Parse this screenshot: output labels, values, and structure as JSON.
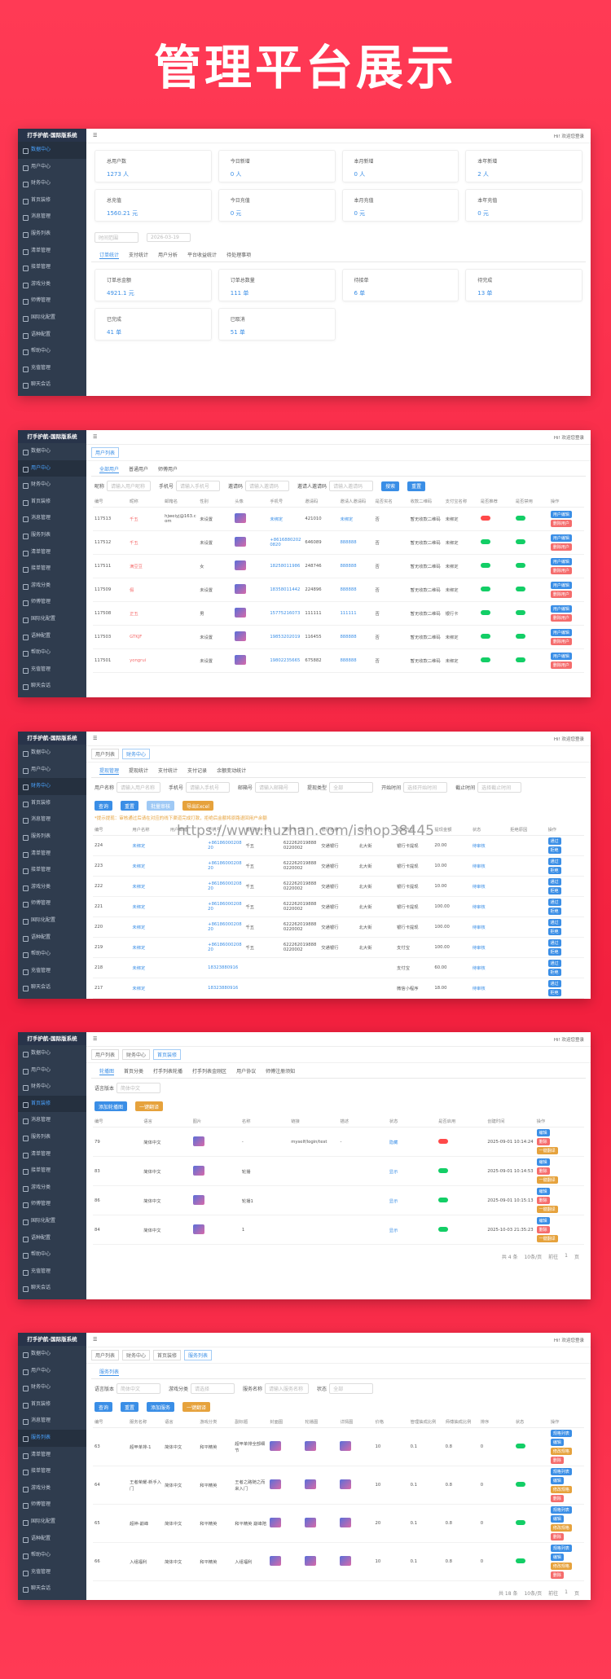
{
  "header": {
    "title": "管理平台展示"
  },
  "watermark": "https://www.huzhan.com/ishop38445",
  "sidebar": {
    "title": "打手护航-国际版系统",
    "menu": [
      "数据中心",
      "用户中心",
      "财务中心",
      "首页装修",
      "消息管理",
      "服务列表",
      "清单管理",
      "接单管理",
      "游戏分类",
      "师傅管理",
      "国际化配置",
      "语种配置",
      "帮助中心",
      "充值管理",
      "聊天会话"
    ]
  },
  "topbar": {
    "user": "Hi! 欢迎您登录"
  },
  "breadcrumbs": [
    "用户列表",
    "财务中心",
    "首页装修",
    "服务列表"
  ],
  "dashboard": {
    "cards": [
      {
        "label": "总用户数",
        "value": "1273 人"
      },
      {
        "label": "今日新增",
        "value": "0 人"
      },
      {
        "label": "本月新增",
        "value": "0 人"
      },
      {
        "label": "本年新增",
        "value": "2 人"
      },
      {
        "label": "总充值",
        "value": "1560.21 元"
      },
      {
        "label": "今日充值",
        "value": "0 元"
      },
      {
        "label": "本月充值",
        "value": "0 元"
      },
      {
        "label": "本年充值",
        "value": "0 元"
      }
    ],
    "range": "时间范围",
    "date": "2026-03-19",
    "tabs": [
      "订单统计",
      "支付统计",
      "用户分析",
      "平台收益统计",
      "待处理事项"
    ],
    "orders": [
      {
        "label": "订单总金额",
        "value": "4921.1 元"
      },
      {
        "label": "订单总数量",
        "value": "111 单"
      },
      {
        "label": "待接单",
        "value": "6 单"
      },
      {
        "label": "待完成",
        "value": "13 单"
      },
      {
        "label": "已完成",
        "value": "41 单"
      },
      {
        "label": "已取消",
        "value": "51 单"
      }
    ]
  },
  "users": {
    "tabs": [
      "全部用户",
      "普通用户",
      "师傅用户"
    ],
    "filters": [
      {
        "label": "昵称",
        "placeholder": "请输入用户昵称"
      },
      {
        "label": "手机号",
        "placeholder": "请输入手机号"
      },
      {
        "label": "邀请码",
        "placeholder": "请输入邀请码"
      },
      {
        "label": "邀请人邀请码",
        "placeholder": "请输入邀请码"
      }
    ],
    "buttons": [
      "搜索",
      "重置"
    ],
    "columns": [
      "编号",
      "昵称",
      "邮箱名",
      "性别",
      "头像",
      "手机号",
      "邀请码",
      "邀请人邀请码",
      "是否实名",
      "收款二维码",
      "支付宝名称",
      "是否推荐",
      "是否禁用",
      "操作"
    ],
    "rows": [
      [
        "117513",
        "千五",
        "hjweiyj@163.com",
        "未设置",
        null,
        "未绑定",
        "421010",
        "未绑定",
        "否",
        "暂无收款二维码",
        "未绑定",
        null,
        null,
        null
      ],
      [
        "117512",
        "千五",
        null,
        "未设置",
        null,
        "+86168802020820",
        "646089",
        "888888",
        "否",
        "暂无收款二维码",
        "未绑定",
        null,
        null,
        null
      ],
      [
        "117511",
        "满豆豆",
        null,
        "女",
        null,
        "18258011986",
        "248746",
        "888888",
        "否",
        "暂无收款二维码",
        "未绑定",
        null,
        null,
        null
      ],
      [
        "117509",
        "假",
        null,
        "未设置",
        null,
        "18358011442",
        "224896",
        "888888",
        "否",
        "暂无收款二维码",
        "未绑定",
        null,
        null,
        null
      ],
      [
        "117508",
        "正五",
        null,
        "男",
        null,
        "15775216073",
        "111111",
        "111111",
        "否",
        "暂无收款二维码",
        "银行卡",
        null,
        null,
        null
      ],
      [
        "117503",
        "GTKJF",
        null,
        "未设置",
        null,
        "19853202019",
        "116455",
        "888888",
        "否",
        "暂无收款二维码",
        "未绑定",
        null,
        null,
        null
      ],
      [
        "117501",
        "yongrui",
        null,
        "未设置",
        null,
        "19802235665",
        "675882",
        "888888",
        "否",
        "暂无收款二维码",
        "未绑定",
        null,
        null,
        null
      ]
    ],
    "actions": [
      "用户编辑",
      "删除用户"
    ]
  },
  "finance": {
    "tabs": [
      "提现管理",
      "提现统计",
      "支付统计",
      "支付记录",
      "余额变动统计"
    ],
    "filters": [
      {
        "label": "用户名称",
        "placeholder": "请输入用户名称"
      },
      {
        "label": "手机号",
        "placeholder": "请输入手机号"
      },
      {
        "label": "邮箱号",
        "placeholder": "请输入邮箱号"
      },
      {
        "label": "提现类型",
        "placeholder": "全部"
      },
      {
        "label": "开始时间",
        "placeholder": "选择开始时间"
      },
      {
        "label": "截止时间",
        "placeholder": "选择截止时间"
      }
    ],
    "buttons": [
      "查询",
      "重置",
      "批量审核",
      "导出Excel"
    ],
    "notice": "*提示提现：审核通过后请在对应的线下渠道完成打款，拒绝后金额将原路退回用户余额",
    "columns": [
      "编号",
      "用户名称",
      "用户邮箱",
      "手机号",
      "银行卡持卡名",
      "银行卡卡号",
      "银行名称",
      "开户行",
      "提现方式",
      "提现金额",
      "状态",
      "拒绝原因",
      "操作"
    ],
    "rows": [
      [
        "224",
        "未绑定",
        null,
        "+8618600020820",
        "千五",
        "6222620198880220002",
        "交通银行",
        "北大街",
        "银行卡提现",
        "20.00",
        "待审核",
        null,
        null
      ],
      [
        "223",
        "未绑定",
        null,
        "+8618600020820",
        "千五",
        "6222620198880220002",
        "交通银行",
        "北大街",
        "银行卡提现",
        "10.00",
        "待审核",
        null,
        null
      ],
      [
        "222",
        "未绑定",
        null,
        "+8618600020820",
        "千五",
        "6222620198880220002",
        "交通银行",
        "北大街",
        "银行卡提现",
        "10.00",
        "待审核",
        null,
        null
      ],
      [
        "221",
        "未绑定",
        null,
        "+8618600020820",
        "千五",
        "6222620198880220002",
        "交通银行",
        "北大街",
        "银行卡提现",
        "100.00",
        "待审核",
        null,
        null
      ],
      [
        "220",
        "未绑定",
        null,
        "+8618600020820",
        "千五",
        "6222620198880220002",
        "交通银行",
        "北大街",
        "银行卡提现",
        "100.00",
        "待审核",
        null,
        null
      ],
      [
        "219",
        "未绑定",
        null,
        "+8618600020820",
        "千五",
        "6222620198880220002",
        "交通银行",
        "北大街",
        "支付宝",
        "100.00",
        "待审核",
        null,
        null
      ],
      [
        "218",
        "未绑定",
        null,
        "18323880916",
        null,
        null,
        null,
        null,
        "支付宝",
        "60.00",
        "待审核",
        null,
        null
      ],
      [
        "217",
        "未绑定",
        null,
        "18323880916",
        null,
        null,
        null,
        null,
        "微信小程序",
        "18.00",
        "待审核",
        null,
        null
      ]
    ],
    "actions": [
      "通过",
      "拒绝"
    ]
  },
  "banners": {
    "tabs": [
      "轮播图",
      "首页分类",
      "打手列表轮播",
      "打手列表金刚区",
      "用户协议",
      "师傅注册须知"
    ],
    "filters": [
      {
        "label": "语言版本",
        "placeholder": "简体中文"
      }
    ],
    "buttons": [
      "添加轮播图",
      "一键翻译"
    ],
    "columns": [
      "编号",
      "语言",
      "图片",
      "名称",
      "链接",
      "描述",
      "状态",
      "是否启用",
      "创建时间",
      "操作"
    ],
    "rows": [
      [
        "79",
        "简体中文",
        null,
        "-",
        "myself/login/test",
        "-",
        "隐藏",
        null,
        "2025-09-01 10:14:24",
        null
      ],
      [
        "83",
        "简体中文",
        null,
        "轮播",
        null,
        null,
        "显示",
        null,
        "2025-09-01 10:14:53",
        null
      ],
      [
        "86",
        "简体中文",
        null,
        "轮播1",
        null,
        null,
        "显示",
        null,
        "2025-09-01 10:15:13",
        null
      ],
      [
        "84",
        "简体中文",
        null,
        "1",
        null,
        null,
        "显示",
        null,
        "2025-10-03 21:35:23",
        null
      ]
    ],
    "actions": [
      "编辑",
      "删除",
      "一键翻译"
    ],
    "pager": [
      "共 4 条",
      "10条/页",
      "前往",
      "1",
      "页"
    ]
  },
  "services": {
    "tabs": [
      "服务列表"
    ],
    "filters": [
      {
        "label": "语言版本",
        "placeholder": "简体中文"
      },
      {
        "label": "游戏分类",
        "placeholder": "请选择"
      },
      {
        "label": "服务名称",
        "placeholder": "请输入服务名称"
      },
      {
        "label": "状态",
        "placeholder": "全部"
      }
    ],
    "buttons": [
      "查询",
      "重置",
      "添加服务",
      "一键翻译"
    ],
    "columns": [
      "编号",
      "服务名称",
      "语言",
      "游戏分类",
      "副标题",
      "封面图",
      "轮播图",
      "详情图",
      "价格",
      "管理抽成比例",
      "师傅抽成比例",
      "排序",
      "状态",
      "操作"
    ],
    "rows": [
      [
        "63",
        "超甲单排-1",
        "简体中文",
        "和平精英",
        "超甲单排全部细节",
        null,
        null,
        null,
        "10",
        "0.1",
        "0.8",
        "0",
        null,
        null
      ],
      [
        "64",
        "王者荣耀-新手入门",
        "简体中文",
        "和平精英",
        "王者之路随之而来入门",
        null,
        null,
        null,
        "10",
        "0.1",
        "0.8",
        "0",
        null,
        null
      ],
      [
        "65",
        "超神-巅峰",
        "简体中文",
        "和平精英",
        "和平精英 巅峰陪",
        null,
        null,
        null,
        "20",
        "0.1",
        "0.8",
        "0",
        null,
        null
      ],
      [
        "66",
        "入组福利",
        "简体中文",
        "和平精英",
        "入组福利",
        null,
        null,
        null,
        "10",
        "0.1",
        "0.8",
        "0",
        null,
        null
      ]
    ],
    "actions": [
      "规格列表",
      "编辑",
      "修改规格",
      "删除"
    ],
    "pager": [
      "共 18 条",
      "10条/页",
      "前往",
      "1",
      "页"
    ]
  }
}
